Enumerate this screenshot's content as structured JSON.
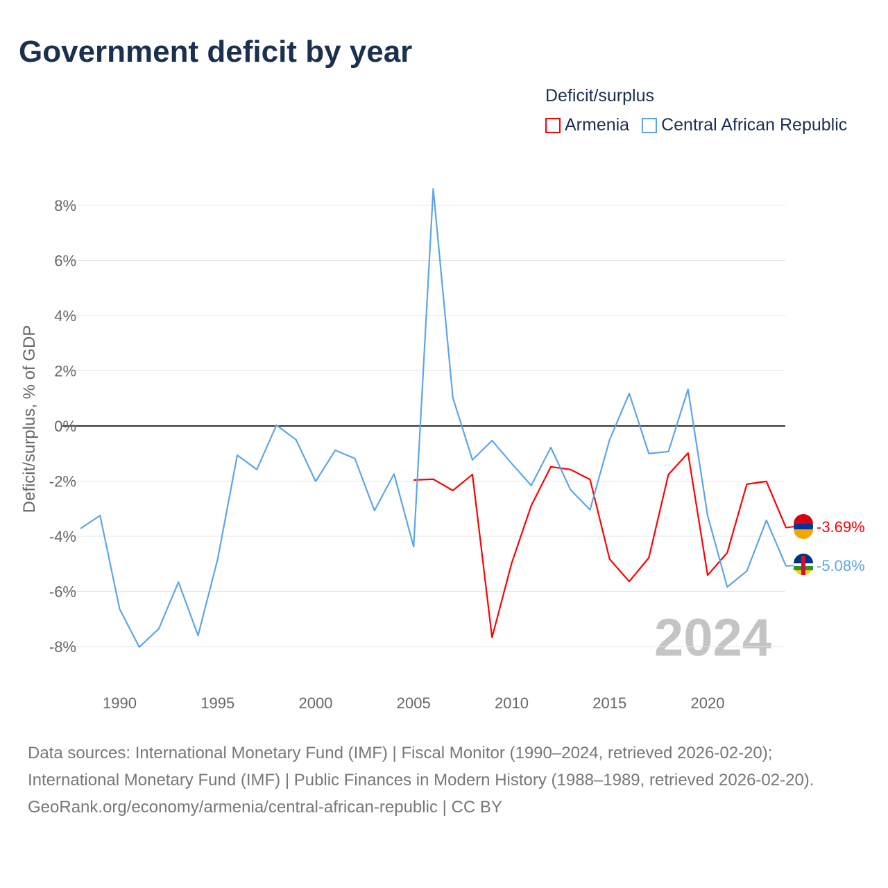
{
  "title": "Government deficit by year",
  "legend_title": "Deficit/surplus",
  "year_label": "2024",
  "footer": {
    "sources": "Data sources: International Monetary Fund (IMF) | Fiscal Monitor (1990–2024, retrieved 2026-02-20); International Monetary Fund (IMF) | Public Finances in Modern History (1988–1989, retrieved 2026-02-20).",
    "link": "GeoRank.org/economy/armenia/central-african-republic | CC BY"
  },
  "chart_data": {
    "type": "line",
    "title": "Government deficit by year",
    "xlabel": "",
    "ylabel": "Deficit/surplus, % of GDP",
    "xlim": [
      1988,
      2024
    ],
    "ylim": [
      -8,
      8
    ],
    "xticks": [
      1990,
      1995,
      2000,
      2005,
      2010,
      2015,
      2020
    ],
    "yticks": [
      -8,
      -6,
      -4,
      -2,
      0,
      2,
      4,
      6,
      8
    ],
    "ytick_labels": [
      "-8%",
      "-6%",
      "-4%",
      "-2%",
      "0%",
      "2%",
      "4%",
      "6%",
      "8%"
    ],
    "grid": true,
    "legend_position": "top-right",
    "series": [
      {
        "name": "Armenia",
        "color": "#ff0000",
        "end_label": "-3.69%",
        "x": [
          2005,
          2006,
          2007,
          2008,
          2009,
          2010,
          2011,
          2012,
          2013,
          2014,
          2015,
          2016,
          2017,
          2018,
          2019,
          2020,
          2021,
          2022,
          2023,
          2024
        ],
        "values": [
          -1.96,
          -1.93,
          -2.34,
          -1.76,
          -7.67,
          -4.98,
          -2.89,
          -1.48,
          -1.58,
          -1.94,
          -4.83,
          -5.64,
          -4.78,
          -1.76,
          -0.98,
          -5.41,
          -4.6,
          -2.11,
          -2.01,
          -3.69
        ]
      },
      {
        "name": "Central African Republic",
        "color": "#5da5e8",
        "end_label": "-5.08%",
        "x": [
          1988,
          1989,
          1990,
          1991,
          1992,
          1993,
          1994,
          1995,
          1996,
          1997,
          1998,
          1999,
          2000,
          2001,
          2002,
          2003,
          2004,
          2005,
          2006,
          2007,
          2008,
          2009,
          2010,
          2011,
          2012,
          2013,
          2014,
          2015,
          2016,
          2017,
          2018,
          2019,
          2020,
          2021,
          2022,
          2023,
          2024
        ],
        "values": [
          -3.72,
          -3.25,
          -6.64,
          -8.02,
          -7.35,
          -5.66,
          -7.6,
          -4.83,
          -1.06,
          -1.58,
          0.03,
          -0.5,
          -2.01,
          -0.88,
          -1.18,
          -3.07,
          -1.74,
          -4.38,
          8.6,
          1.03,
          -1.23,
          -0.53,
          -1.36,
          -2.16,
          -0.78,
          -2.31,
          -3.04,
          -0.5,
          1.18,
          -1.0,
          -0.93,
          1.33,
          -3.25,
          -5.84,
          -5.26,
          -3.42,
          -5.08
        ]
      }
    ]
  }
}
